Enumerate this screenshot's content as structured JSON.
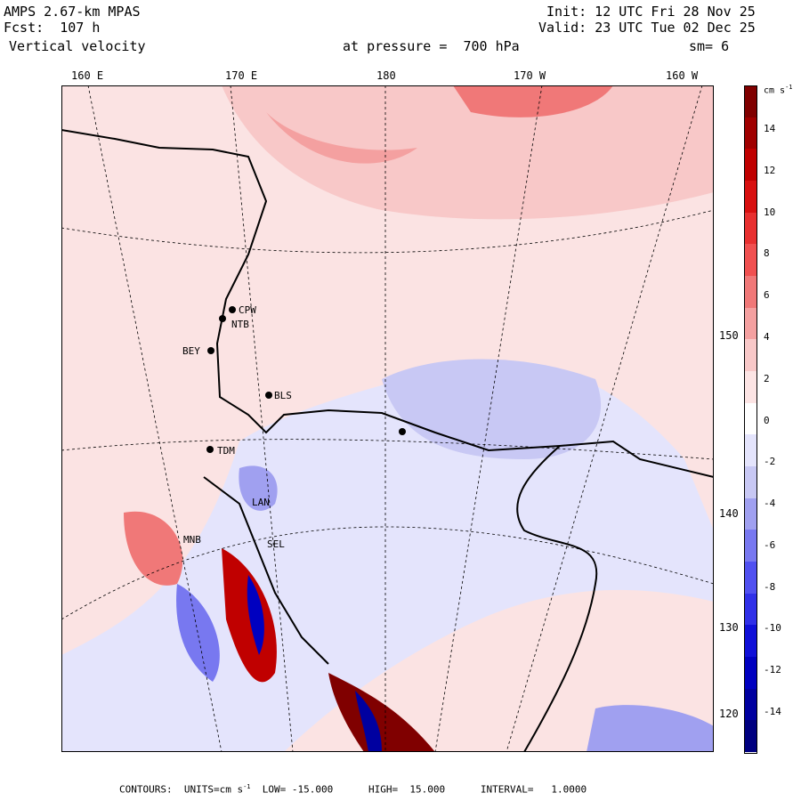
{
  "header": {
    "model": "AMPS 2.67-km MPAS",
    "fcst": "Fcst:  107 h",
    "field": "Vertical velocity",
    "init": "Init: 12 UTC Fri 28 Nov 25",
    "valid": "Valid: 23 UTC Tue 02 Dec 25",
    "pressure": "at pressure =  700 hPa",
    "smoothing": "sm= 6"
  },
  "lon_labels": [
    "160 E",
    "170 E",
    "180",
    "170 W",
    "160 W"
  ],
  "lat_labels": [
    "150 W",
    "140 W",
    "130 W",
    "120 W"
  ],
  "stations": [
    "CPW",
    "NTB",
    "BEY",
    "BLS",
    "TDM",
    "LAN",
    "SEL",
    "MNB"
  ],
  "colorbar": {
    "unit": "cm s",
    "unit_exp": "-1",
    "ticks": [
      "14",
      "12",
      "10",
      "8",
      "6",
      "4",
      "2",
      "0",
      "-2",
      "-4",
      "-6",
      "-8",
      "-10",
      "-12",
      "-14"
    ],
    "colors": [
      "#800000",
      "#a00000",
      "#c00000",
      "#d81010",
      "#e83030",
      "#f05050",
      "#f07878",
      "#f4a0a0",
      "#f8c8c8",
      "#fce4e4",
      "#ffffff",
      "#e4e4fc",
      "#c8c8f4",
      "#a0a0f0",
      "#7878f0",
      "#5050f0",
      "#3030e8",
      "#1010d8",
      "#0000c0",
      "#0000a0",
      "#000080"
    ]
  },
  "footer": {
    "contours": "CONTOURS:",
    "units_label": "UNITS=cm s",
    "units_exp": "-1",
    "low": "LOW= -15.000",
    "high": "HIGH=  15.000",
    "interval": "INTERVAL=   1.0000"
  }
}
